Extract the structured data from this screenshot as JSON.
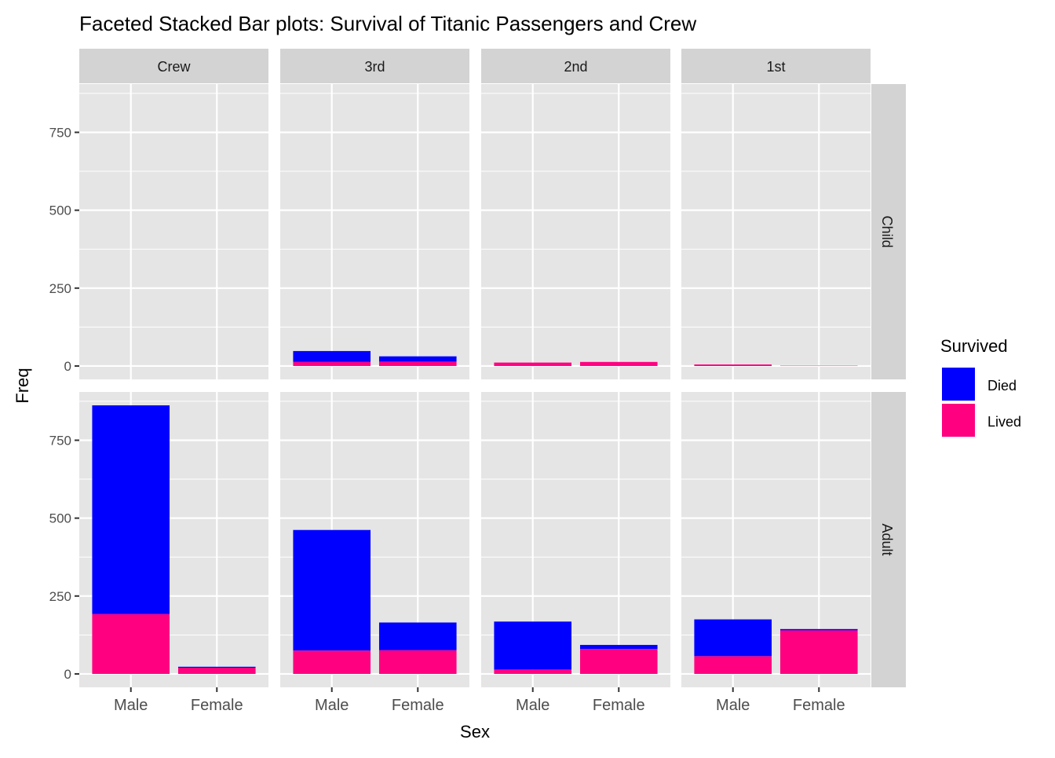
{
  "chart_data": {
    "type": "bar",
    "stacked": true,
    "title": "Faceted Stacked Bar plots: Survival of Titanic Passengers and Crew",
    "xlabel": "Sex",
    "ylabel": "Freq",
    "categories": [
      "Male",
      "Female"
    ],
    "facet_columns": [
      "Crew",
      "3rd",
      "2nd",
      "1st"
    ],
    "facet_rows": [
      "Child",
      "Adult"
    ],
    "yticks": [
      0,
      250,
      500,
      750
    ],
    "ylim": [
      -43,
      905
    ],
    "grid": true,
    "legend": {
      "title": "Survived",
      "position": "right",
      "entries": [
        "Died",
        "Lived"
      ]
    },
    "colors": {
      "Died": "#0000FF",
      "Lived": "#FF0080",
      "panel": "#E5E5E5",
      "strip": "#D3D3D3"
    },
    "panels": [
      {
        "class": "Crew",
        "age": "Child",
        "Died": [
          0,
          0
        ],
        "Lived": [
          0,
          0
        ]
      },
      {
        "class": "3rd",
        "age": "Child",
        "Died": [
          35,
          17
        ],
        "Lived": [
          13,
          14
        ]
      },
      {
        "class": "2nd",
        "age": "Child",
        "Died": [
          0,
          0
        ],
        "Lived": [
          11,
          13
        ]
      },
      {
        "class": "1st",
        "age": "Child",
        "Died": [
          0,
          0
        ],
        "Lived": [
          5,
          1
        ]
      },
      {
        "class": "Crew",
        "age": "Adult",
        "Died": [
          670,
          3
        ],
        "Lived": [
          192,
          20
        ]
      },
      {
        "class": "3rd",
        "age": "Adult",
        "Died": [
          387,
          89
        ],
        "Lived": [
          75,
          76
        ]
      },
      {
        "class": "2nd",
        "age": "Adult",
        "Died": [
          154,
          13
        ],
        "Lived": [
          14,
          80
        ]
      },
      {
        "class": "1st",
        "age": "Adult",
        "Died": [
          118,
          4
        ],
        "Lived": [
          57,
          140
        ]
      }
    ]
  }
}
